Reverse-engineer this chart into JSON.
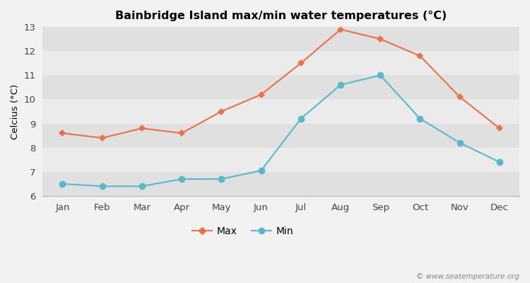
{
  "months": [
    "Jan",
    "Feb",
    "Mar",
    "Apr",
    "May",
    "Jun",
    "Jul",
    "Aug",
    "Sep",
    "Oct",
    "Nov",
    "Dec"
  ],
  "max_temps": [
    8.6,
    8.4,
    8.8,
    8.6,
    9.5,
    10.2,
    11.5,
    12.9,
    12.5,
    11.8,
    10.1,
    8.8
  ],
  "min_temps": [
    6.5,
    6.4,
    6.4,
    6.7,
    6.7,
    7.05,
    9.2,
    10.6,
    11.0,
    9.2,
    8.2,
    7.4
  ],
  "title": "Bainbridge Island max/min water temperatures (°C)",
  "ylabel": "Celcius (°C)",
  "ylim": [
    6,
    13
  ],
  "yticks": [
    6,
    7,
    8,
    9,
    10,
    11,
    12,
    13
  ],
  "max_color": "#e8714a",
  "min_color": "#5ab8cc",
  "background_color": "#f2f2f2",
  "band_color_light": "#ebebeb",
  "band_color_dark": "#e0e0e0",
  "watermark": "© www.seatemperature.org",
  "legend_labels": [
    "Max",
    "Min"
  ]
}
